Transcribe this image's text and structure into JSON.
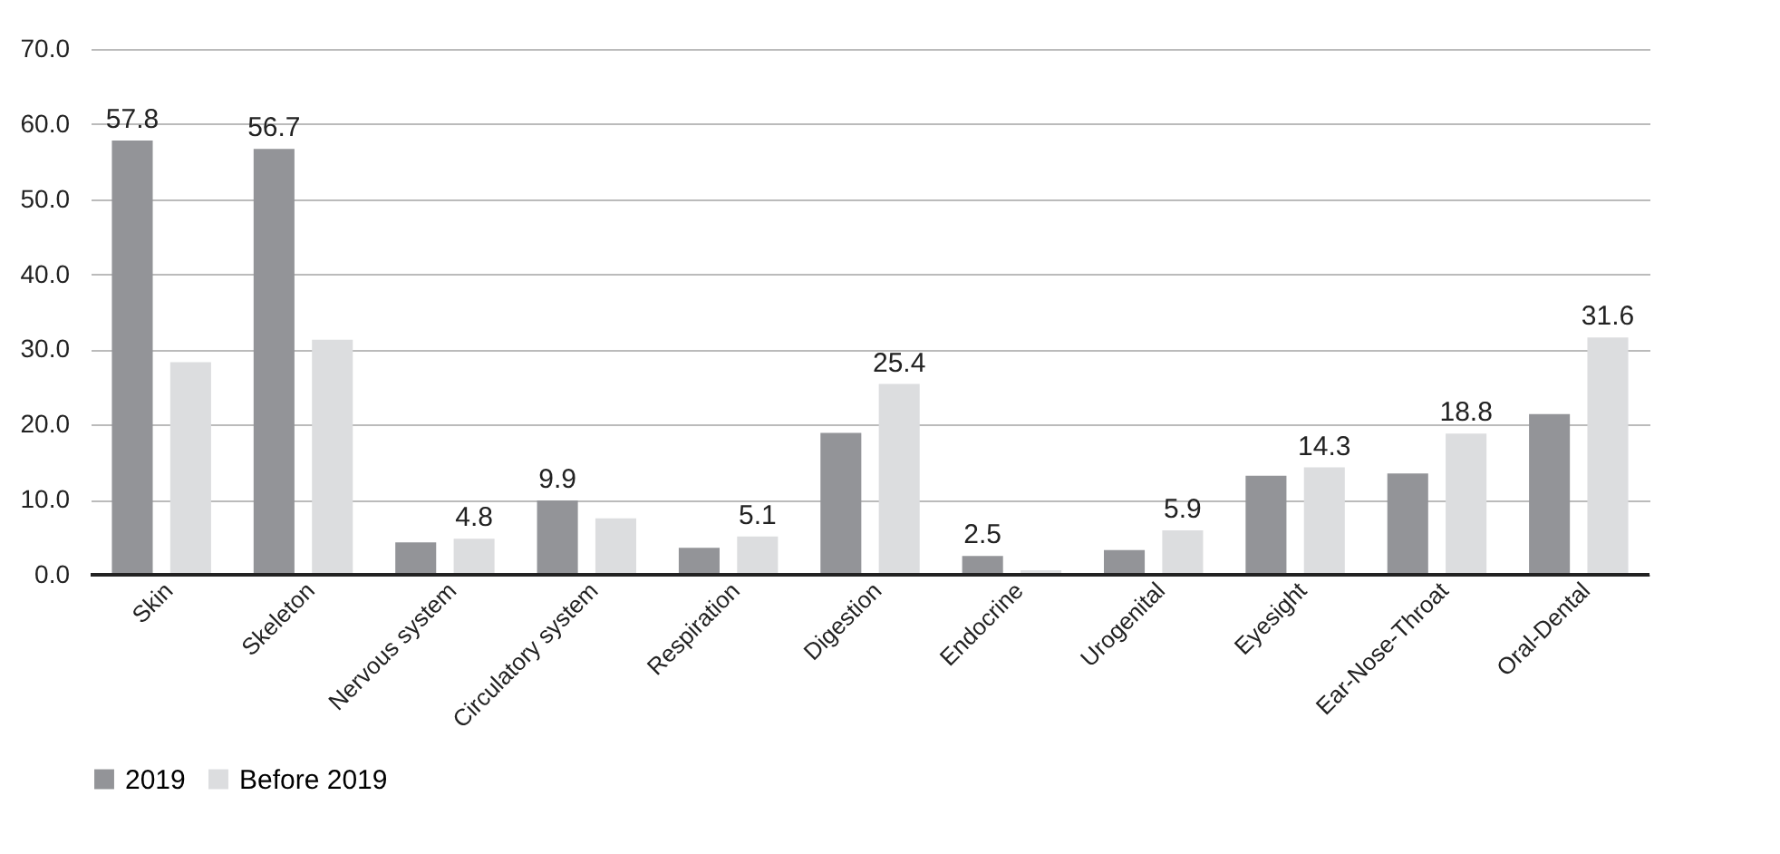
{
  "chart_data": {
    "type": "bar",
    "categories": [
      "Skin",
      "Skeleton",
      "Nervous system",
      "Circulatory system",
      "Respiration",
      "Digestion",
      "Endocrine",
      "Urogenital",
      "Eyesight",
      "Ear-Nose-Throat",
      "Oral-Dental"
    ],
    "series": [
      {
        "name": "2019",
        "color": "#939498",
        "values": [
          57.8,
          56.7,
          4.3,
          9.9,
          3.6,
          18.9,
          2.5,
          3.3,
          13.2,
          13.5,
          21.4
        ],
        "value_labels": [
          "57.8",
          "56.7",
          null,
          "9.9",
          null,
          null,
          "2.5",
          null,
          null,
          null,
          null
        ]
      },
      {
        "name": "Before 2019",
        "color": "#dcdddf",
        "values": [
          28.3,
          31.3,
          4.8,
          7.5,
          5.1,
          25.4,
          0.6,
          5.9,
          14.3,
          18.8,
          31.6
        ],
        "value_labels": [
          null,
          null,
          "4.8",
          null,
          "5.1",
          "25.4",
          null,
          "5.9",
          "14.3",
          "18.8",
          "31.6"
        ]
      }
    ],
    "ylim": [
      0,
      70
    ],
    "yticks": [
      {
        "value": 0,
        "label": "0.0"
      },
      {
        "value": 10,
        "label": "10.0"
      },
      {
        "value": 20,
        "label": "20.0"
      },
      {
        "value": 30,
        "label": "30.0"
      },
      {
        "value": 40,
        "label": "40.0"
      },
      {
        "value": 50,
        "label": "50.0"
      },
      {
        "value": 60,
        "label": "60.0"
      },
      {
        "value": 70,
        "label": "70.0"
      }
    ],
    "grid": "y",
    "legend": "bottom"
  }
}
